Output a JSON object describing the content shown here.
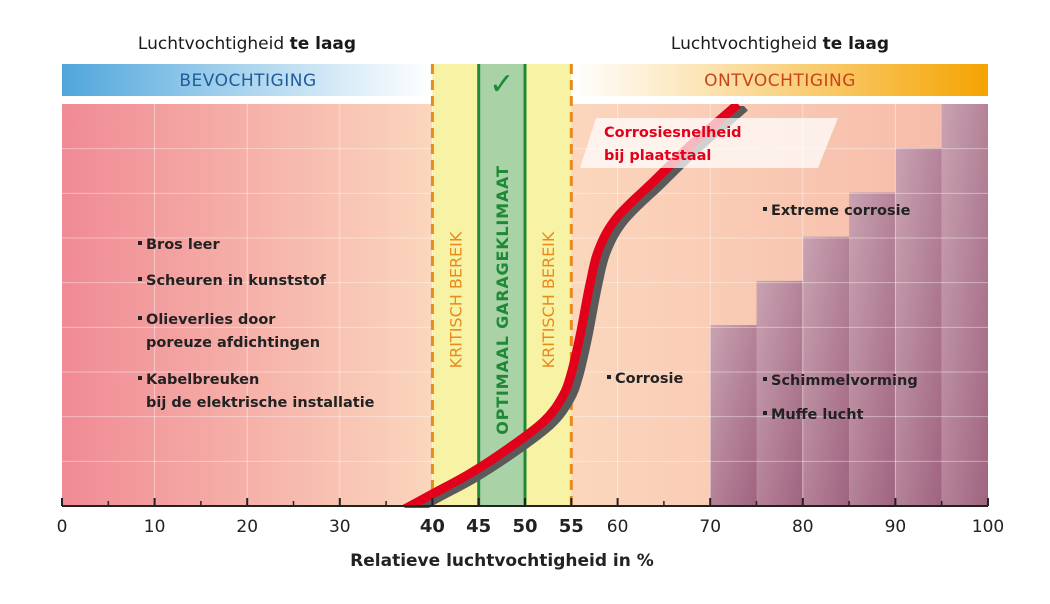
{
  "header": {
    "left": {
      "text": "Luchtvochtigheid ",
      "bold": "te laag"
    },
    "right": {
      "text": "Luchtvochtigheid ",
      "bold": "te laag"
    }
  },
  "bands": {
    "left": "BEVOCHTIGING",
    "right": "ONTVOCHTIGING",
    "check": "✓"
  },
  "zones": {
    "critical_left": "KRITISCH BEREIK",
    "optimal": "OPTIMAAL GARAGEKLIMAAT",
    "critical_right": "KRITISCH BEREIK"
  },
  "colors": {
    "band_left": "#4fa6dc",
    "band_left_text": "#1f5d9a",
    "band_right": "#f5a300",
    "band_right_text": "#c8451a",
    "critical": "#f8f3a4",
    "critical_line": "#e88a1c",
    "critical_text": "#e88a1c",
    "optimal": "#a9d2a6",
    "optimal_line": "#1e8a35",
    "optimal_text": "#1e8a35",
    "bg_red": "#f08a94",
    "bg_peach": "#fbd6bd",
    "bg_purple": "#a0637f",
    "curve": "#e3001b",
    "curve_shadow": "#5a5a5a"
  },
  "chart_data": {
    "type": "line",
    "title": "",
    "xlabel": "Relatieve luchtvochtigheid in %",
    "ylabel": "",
    "xlim": [
      0,
      100
    ],
    "ylim": [
      0,
      100
    ],
    "x_ticks": [
      0,
      10,
      20,
      30,
      40,
      45,
      50,
      55,
      60,
      70,
      80,
      90,
      100
    ],
    "highlighted_ticks": {
      "40": "#e88a1c",
      "45": "#1e8a35",
      "50": "#1e8a35",
      "55": "#e88a1c"
    },
    "series": [
      {
        "name": "Corrosiesnelheid bij plaatstaal",
        "label_lines": [
          "Corrosiesnelheid",
          "bij plaatstaal"
        ],
        "x": [
          36,
          40,
          44,
          48,
          52,
          54,
          55,
          56,
          57,
          58,
          60,
          64,
          68,
          71,
          73
        ],
        "y": [
          -2,
          3,
          8,
          14,
          21,
          27,
          33,
          43,
          55,
          64,
          72,
          81,
          90,
          96,
          100
        ]
      }
    ],
    "regions": [
      {
        "name": "critical_left",
        "from": 40,
        "to": 45
      },
      {
        "name": "optimal",
        "from": 45,
        "to": 50
      },
      {
        "name": "critical_right",
        "from": 50,
        "to": 55
      }
    ],
    "mold_steps": [
      {
        "from": 70,
        "to": 75,
        "top": 45
      },
      {
        "from": 75,
        "to": 80,
        "top": 56
      },
      {
        "from": 80,
        "to": 85,
        "top": 67
      },
      {
        "from": 85,
        "to": 90,
        "top": 78
      },
      {
        "from": 90,
        "to": 95,
        "top": 89
      },
      {
        "from": 95,
        "to": 100,
        "top": 100
      }
    ],
    "annotations": {
      "left": [
        "Bros leer",
        "Scheuren in kunststof",
        "Olieverlies door",
        "poreuze afdichtingen",
        "Kabelbreuken",
        "bij de elektrische installatie"
      ],
      "corrosie": "Corrosie",
      "extreme": "Extreme corrosie",
      "schimmel": "Schimmelvorming",
      "muffe": "Muffe lucht"
    }
  }
}
